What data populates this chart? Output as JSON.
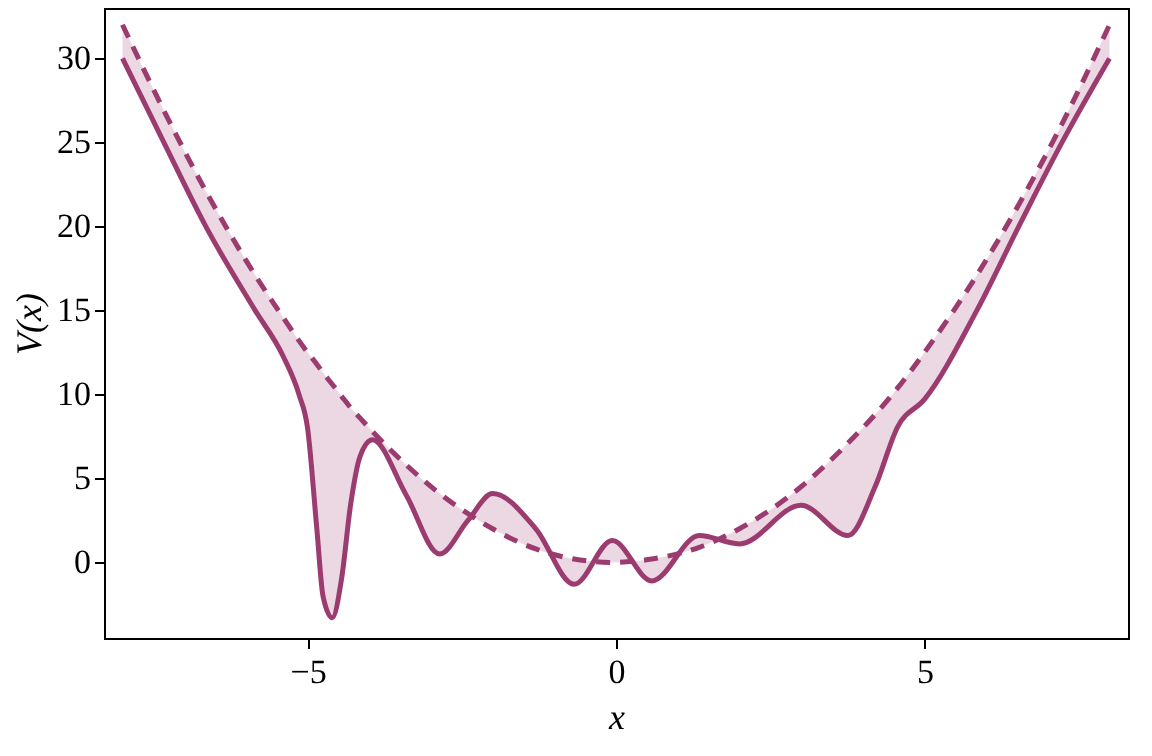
{
  "chart_data": {
    "type": "line",
    "xlabel": "x",
    "ylabel": "V(x)",
    "x": [
      -8,
      -7.33,
      -6.65,
      -5.85,
      -5.4,
      -5.14,
      -5,
      -4.85,
      -4.75,
      -4.6,
      -4.45,
      -4.3,
      -4.15,
      -3.95,
      -3.4,
      -2.86,
      -2.4,
      -2.0,
      -1.3,
      -0.68,
      -0.06,
      0.58,
      1.35,
      2.0,
      3.0,
      3.76,
      4.2,
      4.57,
      5.0,
      5.85,
      6.53,
      7.23,
      8
    ],
    "series": [
      {
        "color": "#9b3b6f",
        "line_style": "solid",
        "values": [
          30,
          25,
          20,
          15,
          12.3,
          10,
          8,
          2,
          -2,
          -3.3,
          -1,
          3.5,
          6.3,
          7.3,
          4,
          0.5,
          2.5,
          4.1,
          2,
          -1.3,
          1.3,
          -1.1,
          1.6,
          1.1,
          3.4,
          1.6,
          4.5,
          8.1,
          9.7,
          15,
          20,
          25,
          30
        ],
        "lower": [
          30,
          25,
          20,
          15,
          12.3,
          10,
          8,
          2,
          -2,
          -3.3,
          -1,
          3.5,
          6.3,
          7.3,
          4,
          0.5,
          2.5,
          4.1,
          2,
          -1.3,
          1.3,
          -1.1,
          1.6,
          1.1,
          3.4,
          1.6,
          4.5,
          8.1,
          9.7,
          15,
          20,
          25,
          30
        ],
        "upper": [
          32,
          26.9,
          22.1,
          17.1,
          14.6,
          13.2,
          12.5,
          11.8,
          11.3,
          10.6,
          9.9,
          9.2,
          8.6,
          7.8,
          5.8,
          4.1,
          2.9,
          2,
          0.8,
          0.2,
          0,
          0.2,
          0.9,
          2,
          4.5,
          7.1,
          8.8,
          10.4,
          12.5,
          17.1,
          21.3,
          26.1,
          32
        ]
      },
      {
        "color": "#9b3b6f",
        "line_style": "dashed",
        "values": [
          32,
          26.9,
          22.1,
          17.1,
          14.6,
          13.2,
          12.5,
          11.8,
          11.3,
          10.6,
          9.9,
          9.2,
          8.6,
          7.8,
          5.8,
          4.1,
          2.9,
          2,
          0.8,
          0.2,
          0,
          0.2,
          0.9,
          2,
          4.5,
          7.1,
          8.8,
          10.4,
          12.5,
          17.1,
          21.3,
          26.1,
          32
        ]
      }
    ],
    "xlim": [
      -8.3,
      8.3
    ],
    "xticks": [
      -5,
      0,
      5
    ],
    "ylim": [
      -4.5,
      33
    ],
    "yticks": [
      0,
      5,
      10,
      15,
      20,
      25,
      30
    ],
    "grid": false,
    "marker": "none"
  }
}
